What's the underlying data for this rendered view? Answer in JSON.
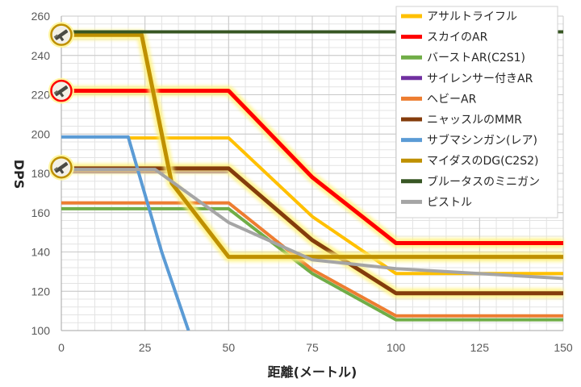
{
  "chart_data": {
    "type": "line",
    "title": "",
    "xlabel": "距離(メートル)",
    "ylabel": "DPS",
    "xlim": [
      0,
      150
    ],
    "ylim": [
      100,
      260
    ],
    "xticks": [
      0,
      25,
      50,
      75,
      100,
      125,
      150
    ],
    "yticks": [
      100,
      120,
      140,
      160,
      180,
      200,
      220,
      240,
      260
    ],
    "grid": true,
    "legend_position": "top-right",
    "series": [
      {
        "name": "アサルトライフル",
        "color": "#FFC000",
        "width": 4,
        "glow": false,
        "points": [
          [
            20,
            198
          ],
          [
            50,
            198
          ],
          [
            75,
            158
          ],
          [
            100,
            129
          ],
          [
            150,
            129
          ]
        ]
      },
      {
        "name": "スカイのAR",
        "color": "#FF0000",
        "width": 5,
        "glow": true,
        "points": [
          [
            0,
            222
          ],
          [
            50,
            222
          ],
          [
            75,
            178
          ],
          [
            100,
            144.5
          ],
          [
            150,
            144.5
          ]
        ]
      },
      {
        "name": "バーストAR(C2S1)",
        "color": "#70AD47",
        "width": 4,
        "glow": false,
        "points": [
          [
            0,
            162
          ],
          [
            50,
            162
          ],
          [
            75,
            129
          ],
          [
            100,
            105.5
          ],
          [
            150,
            105.5
          ]
        ]
      },
      {
        "name": "サイレンサー付きAR",
        "color": "#7030A0",
        "width": 4,
        "glow": false,
        "points": [
          [
            0,
            181
          ],
          [
            50,
            181
          ]
        ]
      },
      {
        "name": "ヘビーAR",
        "color": "#ED7D31",
        "width": 4,
        "glow": false,
        "points": [
          [
            0,
            165
          ],
          [
            50,
            165
          ],
          [
            75,
            131
          ],
          [
            100,
            107.5
          ],
          [
            150,
            107.5
          ]
        ]
      },
      {
        "name": "ニャッスルのMMR",
        "color": "#843C0C",
        "width": 5,
        "glow": true,
        "points": [
          [
            0,
            182.5
          ],
          [
            50,
            182.5
          ],
          [
            75,
            146
          ],
          [
            100,
            119
          ],
          [
            150,
            119
          ]
        ]
      },
      {
        "name": "サブマシンガン(レア)",
        "color": "#5B9BD5",
        "width": 4,
        "glow": false,
        "points": [
          [
            0,
            198.5
          ],
          [
            20,
            198.5
          ],
          [
            30,
            140
          ],
          [
            38,
            100
          ]
        ]
      },
      {
        "name": "マイダスのDG(C2S2)",
        "color": "#BF9000",
        "width": 5,
        "glow": true,
        "points": [
          [
            0,
            250.5
          ],
          [
            24,
            250.5
          ],
          [
            33,
            175
          ],
          [
            50,
            137.5
          ],
          [
            150,
            137.5
          ]
        ]
      },
      {
        "name": "ブルータスのミニガン",
        "color": "#375623",
        "width": 4,
        "glow": false,
        "points": [
          [
            0,
            252
          ],
          [
            150,
            252
          ]
        ]
      },
      {
        "name": "ピストル",
        "color": "#A5A5A5",
        "width": 4,
        "glow": false,
        "points": [
          [
            0,
            182
          ],
          [
            28,
            182
          ],
          [
            50,
            155
          ],
          [
            75,
            136
          ],
          [
            100,
            131.5
          ],
          [
            150,
            126.5
          ]
        ]
      }
    ],
    "markers": [
      {
        "name": "マイダスのDG(C2S2) marker",
        "x": 0,
        "y": 250.5,
        "ring": "#BF9000",
        "icon": "gun-icon"
      },
      {
        "name": "スカイのAR marker",
        "x": 0,
        "y": 222,
        "ring": "#FF0000",
        "icon": "gun-icon"
      },
      {
        "name": "ニャッスルのMMR marker",
        "x": 0,
        "y": 183,
        "ring": "#BF9000",
        "icon": "gun-icon"
      }
    ]
  }
}
